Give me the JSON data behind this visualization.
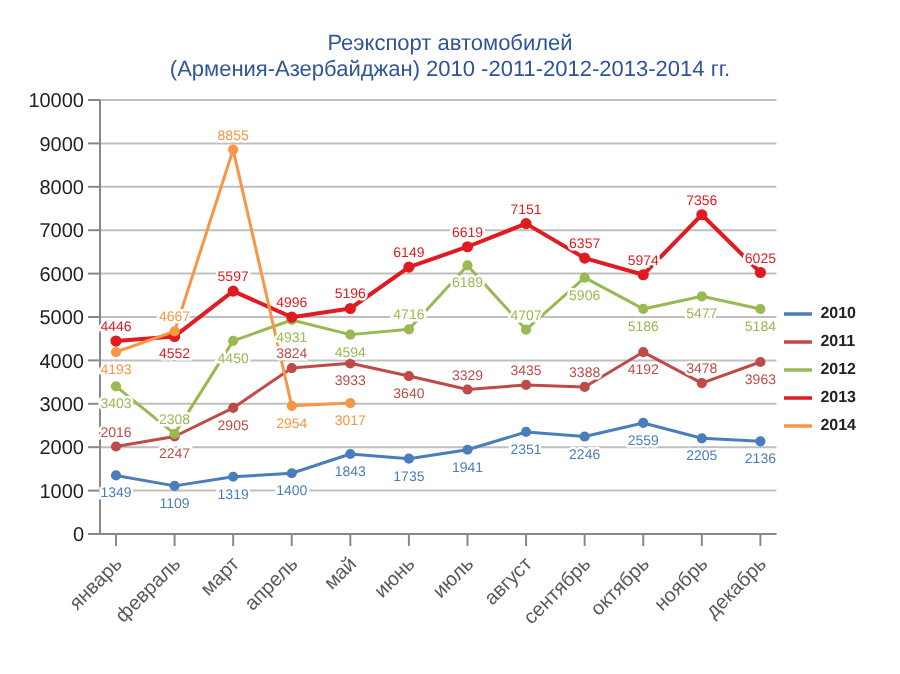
{
  "chart_data": {
    "type": "line",
    "title": "Реэкспорт автомобилей",
    "subtitle": "(Армения-Азербайджан) 2010 -2011-2012-2013-2014  гг.",
    "categories": [
      "январь",
      "февраль",
      "март",
      "апрель",
      "май",
      "июнь",
      "июль",
      "август",
      "сентябрь",
      "октябрь",
      "ноябрь",
      "декабрь"
    ],
    "series": [
      {
        "name": "2010",
        "color": "#4a7ebb",
        "values": [
          1349,
          1109,
          1319,
          1400,
          1843,
          1735,
          1941,
          2351,
          2246,
          2559,
          2205,
          2136
        ]
      },
      {
        "name": "2011",
        "color": "#be4b48",
        "values": [
          2016,
          2247,
          2905,
          3824,
          3933,
          3640,
          3329,
          3435,
          3388,
          4192,
          3478,
          3963
        ]
      },
      {
        "name": "2012",
        "color": "#98b954",
        "values": [
          3403,
          2308,
          4450,
          4931,
          4594,
          4716,
          6189,
          4707,
          5906,
          5186,
          5477,
          5184
        ]
      },
      {
        "name": "2013",
        "color": "#e01b22",
        "values": [
          4446,
          4552,
          5597,
          4996,
          5196,
          6149,
          6619,
          7151,
          6357,
          5974,
          7356,
          6025
        ]
      },
      {
        "name": "2014",
        "color": "#f79646",
        "values": [
          4193,
          4667,
          8855,
          2954,
          3017,
          null,
          null,
          null,
          null,
          null,
          null,
          null
        ]
      }
    ],
    "ylim": [
      0,
      10000
    ],
    "yticks": [
      0,
      1000,
      2000,
      3000,
      4000,
      5000,
      6000,
      7000,
      8000,
      9000,
      10000
    ],
    "grid": "y",
    "legend": "right",
    "marker": "circle",
    "data_labels": true
  }
}
